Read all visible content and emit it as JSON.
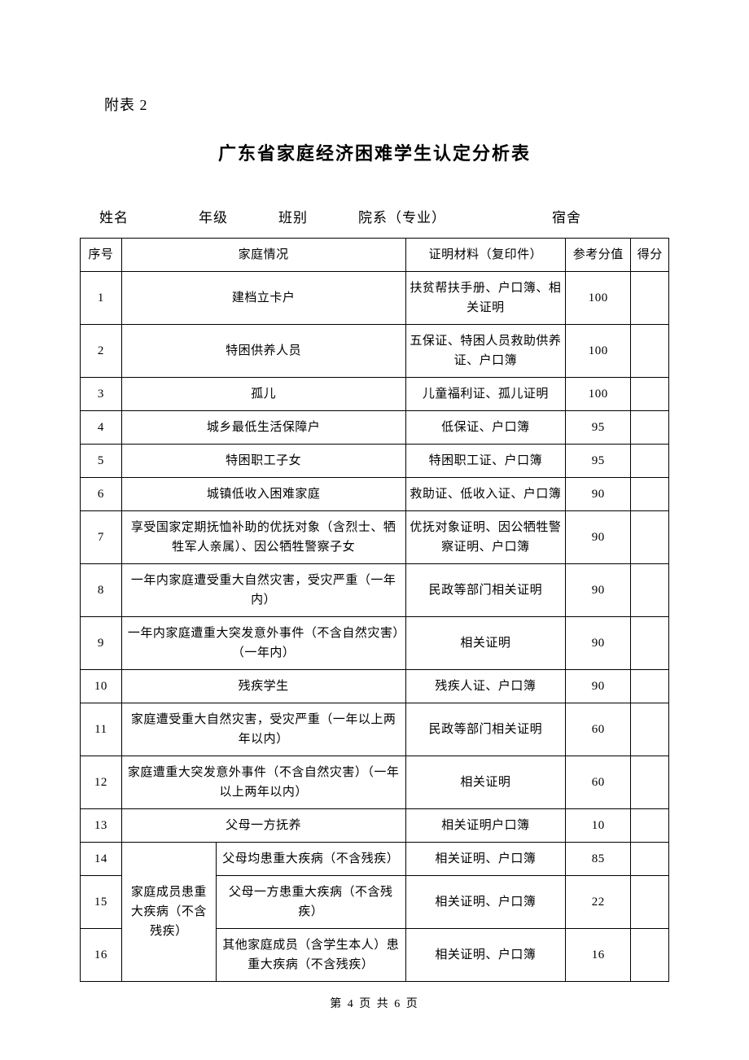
{
  "attachment_label": "附表 2",
  "title": "广东省家庭经济困难学生认定分析表",
  "info_labels": {
    "name": "姓名",
    "grade": "年级",
    "class": "班别",
    "dept": "院系（专业）",
    "dorm": "宿舍"
  },
  "header": {
    "seq": "序号",
    "situation": "家庭情况",
    "material": "证明材料（复印件）",
    "ref_score": "参考分值",
    "score": "得分"
  },
  "group14_label": "家庭成员患重大疾病（不含残疾）",
  "rows": [
    {
      "seq": "1",
      "situation": "建档立卡户",
      "material": "扶贫帮扶手册、户口簿、相关证明",
      "ref": "100",
      "score": ""
    },
    {
      "seq": "2",
      "situation": "特困供养人员",
      "material": "五保证、特困人员救助供养证、户口簿",
      "ref": "100",
      "score": ""
    },
    {
      "seq": "3",
      "situation": "孤儿",
      "material": "儿童福利证、孤儿证明",
      "ref": "100",
      "score": ""
    },
    {
      "seq": "4",
      "situation": "城乡最低生活保障户",
      "material": "低保证、户口簿",
      "ref": "95",
      "score": ""
    },
    {
      "seq": "5",
      "situation": "特困职工子女",
      "material": "特困职工证、户口簿",
      "ref": "95",
      "score": ""
    },
    {
      "seq": "6",
      "situation": "城镇低收入困难家庭",
      "material": "救助证、低收入证、户口簿",
      "ref": "90",
      "score": ""
    },
    {
      "seq": "7",
      "situation": "享受国家定期抚恤补助的优抚对象（含烈士、牺牲军人亲属）、因公牺牲警察子女",
      "material": "优抚对象证明、因公牺牲警察证明、户口簿",
      "ref": "90",
      "score": ""
    },
    {
      "seq": "8",
      "situation": "一年内家庭遭受重大自然灾害，受灾严重（一年内）",
      "material": "民政等部门相关证明",
      "ref": "90",
      "score": ""
    },
    {
      "seq": "9",
      "situation": "一年内家庭遭重大突发意外事件（不含自然灾害）（一年内）",
      "material": "相关证明",
      "ref": "90",
      "score": ""
    },
    {
      "seq": "10",
      "situation": "残疾学生",
      "material": "残疾人证、户口簿",
      "ref": "90",
      "score": ""
    },
    {
      "seq": "11",
      "situation": "家庭遭受重大自然灾害，受灾严重（一年以上两年以内）",
      "material": "民政等部门相关证明",
      "ref": "60",
      "score": ""
    },
    {
      "seq": "12",
      "situation": "家庭遭重大突发意外事件（不含自然灾害）（一年以上两年以内）",
      "material": "相关证明",
      "ref": "60",
      "score": ""
    },
    {
      "seq": "13",
      "situation": "父母一方抚养",
      "material": "相关证明户口簿",
      "ref": "10",
      "score": ""
    },
    {
      "seq": "14",
      "sub": "父母均患重大疾病（不含残疾）",
      "material": "相关证明、户口簿",
      "ref": "85",
      "score": ""
    },
    {
      "seq": "15",
      "sub": "父母一方患重大疾病（不含残疾）",
      "material": "相关证明、户口簿",
      "ref": "22",
      "score": ""
    },
    {
      "seq": "16",
      "sub": "其他家庭成员（含学生本人）患重大疾病（不含残疾）",
      "material": "相关证明、户口簿",
      "ref": "16",
      "score": ""
    }
  ],
  "footer": "第 4 页 共 6 页",
  "colors": {
    "text": "#000000",
    "border": "#000000",
    "background": "#ffffff"
  },
  "typography": {
    "body_font": "SimSun",
    "title_fontsize": 22,
    "label_fontsize": 18,
    "info_fontsize": 17,
    "table_fontsize": 15,
    "footer_fontsize": 14
  }
}
